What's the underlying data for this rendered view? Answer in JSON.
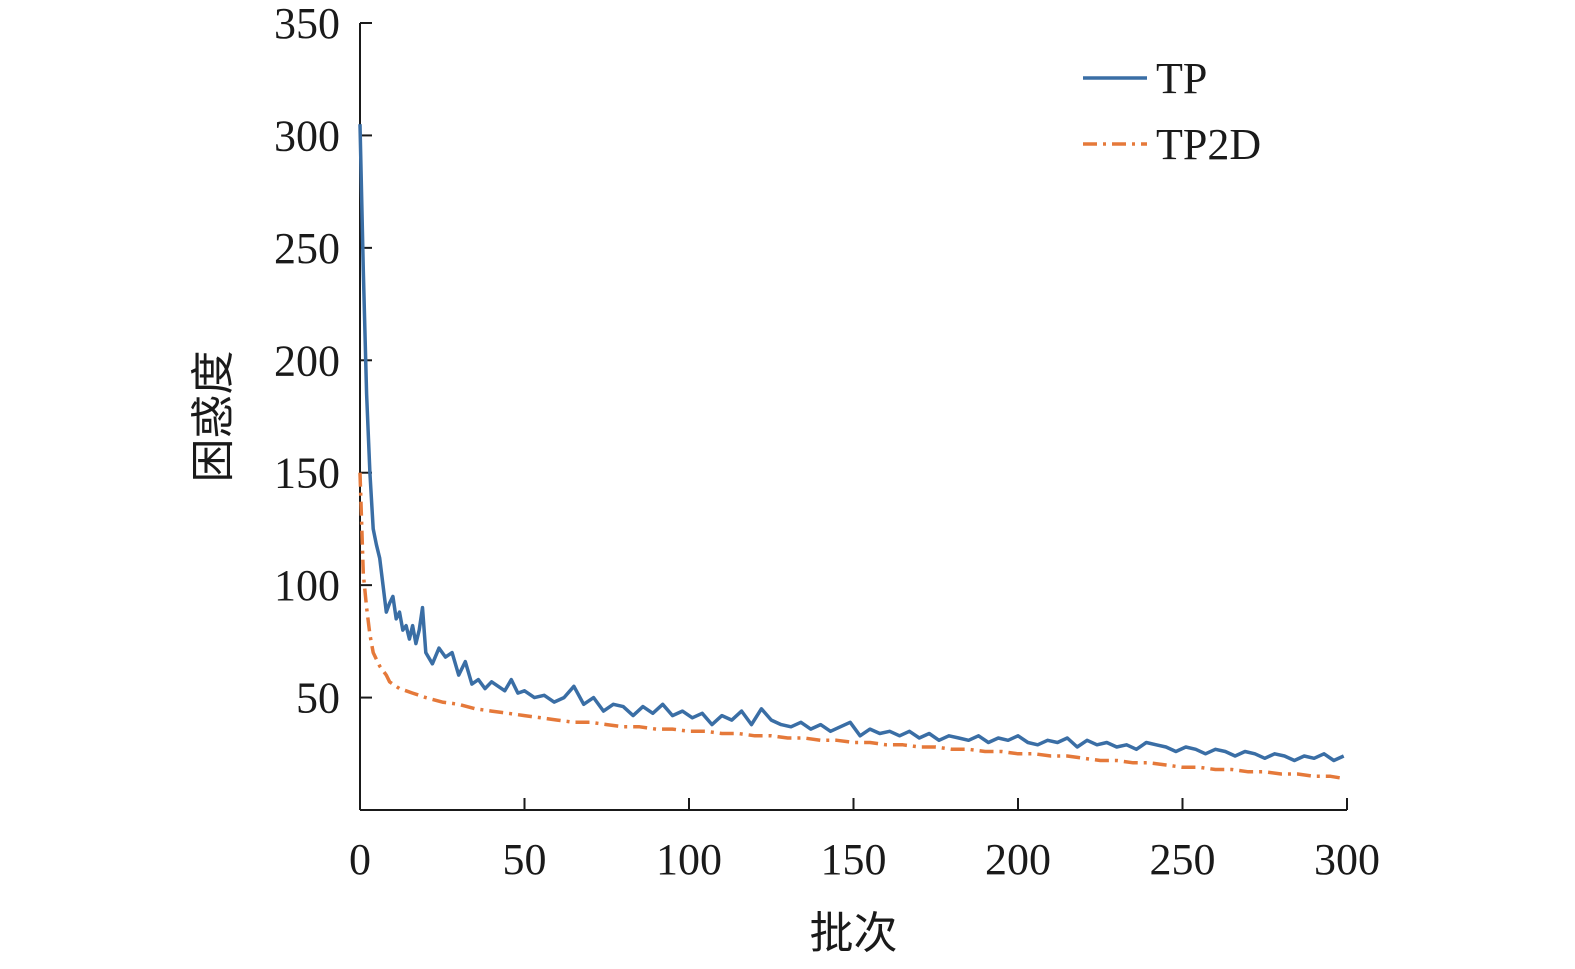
{
  "chart_data": {
    "type": "line",
    "title": "",
    "xlabel": "批次",
    "ylabel": "困惑度",
    "xlim": [
      0,
      300
    ],
    "ylim": [
      0,
      350
    ],
    "x_ticks": [
      0,
      50,
      100,
      150,
      200,
      250,
      300
    ],
    "y_ticks": [
      50,
      100,
      150,
      200,
      250,
      300,
      350
    ],
    "grid": false,
    "legend_position": "top-right",
    "series": [
      {
        "name": "TP",
        "color": "#3a6ea5",
        "dash": "solid",
        "x": [
          0,
          1,
          2,
          3,
          4,
          5,
          6,
          7,
          8,
          9,
          10,
          11,
          12,
          13,
          14,
          15,
          16,
          17,
          18,
          19,
          20,
          22,
          24,
          26,
          28,
          30,
          32,
          34,
          36,
          38,
          40,
          42,
          44,
          46,
          48,
          50,
          53,
          56,
          59,
          62,
          65,
          68,
          71,
          74,
          77,
          80,
          83,
          86,
          89,
          92,
          95,
          98,
          101,
          104,
          107,
          110,
          113,
          116,
          119,
          122,
          125,
          128,
          131,
          134,
          137,
          140,
          143,
          146,
          149,
          152,
          155,
          158,
          161,
          164,
          167,
          170,
          173,
          176,
          179,
          182,
          185,
          188,
          191,
          194,
          197,
          200,
          203,
          206,
          209,
          212,
          215,
          218,
          221,
          224,
          227,
          230,
          233,
          236,
          239,
          242,
          245,
          248,
          251,
          254,
          257,
          260,
          263,
          266,
          269,
          272,
          275,
          278,
          281,
          284,
          287,
          290,
          293,
          296,
          299
        ],
        "y": [
          305,
          240,
          185,
          150,
          125,
          118,
          112,
          100,
          88,
          92,
          95,
          85,
          88,
          80,
          82,
          76,
          82,
          74,
          80,
          90,
          70,
          65,
          72,
          68,
          70,
          60,
          66,
          56,
          58,
          54,
          57,
          55,
          53,
          58,
          52,
          53,
          50,
          51,
          48,
          50,
          55,
          47,
          50,
          44,
          47,
          46,
          42,
          46,
          43,
          47,
          42,
          44,
          41,
          43,
          38,
          42,
          40,
          44,
          38,
          45,
          40,
          38,
          37,
          39,
          36,
          38,
          35,
          37,
          39,
          33,
          36,
          34,
          35,
          33,
          35,
          32,
          34,
          31,
          33,
          32,
          31,
          33,
          30,
          32,
          31,
          33,
          30,
          29,
          31,
          30,
          32,
          28,
          31,
          29,
          30,
          28,
          29,
          27,
          30,
          29,
          28,
          26,
          28,
          27,
          25,
          27,
          26,
          24,
          26,
          25,
          23,
          25,
          24,
          22,
          24,
          23,
          25,
          22,
          24
        ]
      },
      {
        "name": "TP2D",
        "color": "#e5793a",
        "dash": "dashdot",
        "x": [
          0,
          1,
          2,
          3,
          4,
          5,
          6,
          7,
          8,
          9,
          10,
          12,
          14,
          16,
          18,
          20,
          25,
          30,
          35,
          40,
          45,
          50,
          55,
          60,
          65,
          70,
          75,
          80,
          85,
          90,
          95,
          100,
          105,
          110,
          115,
          120,
          125,
          130,
          135,
          140,
          145,
          150,
          155,
          160,
          165,
          170,
          175,
          180,
          185,
          190,
          195,
          200,
          205,
          210,
          215,
          220,
          225,
          230,
          235,
          240,
          245,
          250,
          255,
          260,
          265,
          270,
          275,
          280,
          285,
          290,
          295,
          299
        ],
        "y": [
          150,
          105,
          90,
          78,
          70,
          67,
          64,
          62,
          60,
          57,
          56,
          54,
          53,
          52,
          51,
          50,
          48,
          47,
          45,
          44,
          43,
          42,
          41,
          40,
          39,
          39,
          38,
          37,
          37,
          36,
          36,
          35,
          35,
          34,
          34,
          33,
          33,
          32,
          32,
          31,
          31,
          30,
          30,
          29,
          29,
          28,
          28,
          27,
          27,
          26,
          26,
          25,
          25,
          24,
          24,
          23,
          22,
          22,
          21,
          21,
          20,
          19,
          19,
          18,
          18,
          17,
          17,
          16,
          16,
          15,
          15,
          14
        ]
      }
    ]
  }
}
